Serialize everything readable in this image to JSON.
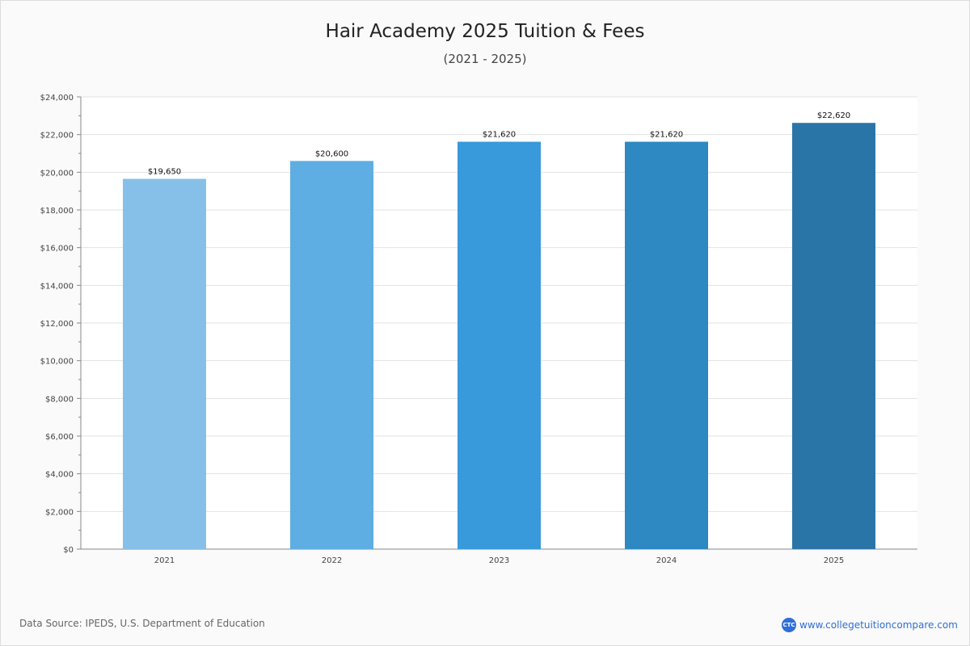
{
  "chart_data": {
    "type": "bar",
    "title": "Hair Academy 2025 Tuition & Fees",
    "subtitle": "(2021 - 2025)",
    "categories": [
      "2021",
      "2022",
      "2023",
      "2024",
      "2025"
    ],
    "values": [
      19650,
      20600,
      21620,
      21620,
      22620
    ],
    "value_labels": [
      "$19,650",
      "$20,600",
      "$21,620",
      "$21,620",
      "$22,620"
    ],
    "colors": [
      "#86c0e8",
      "#5eaee3",
      "#3899db",
      "#2e88c2",
      "#2a75a8"
    ],
    "ylim": [
      0,
      24000
    ],
    "yticks": [
      0,
      2000,
      4000,
      6000,
      8000,
      10000,
      12000,
      14000,
      16000,
      18000,
      20000,
      22000,
      24000
    ],
    "ytick_labels": [
      "$0",
      "$2,000",
      "$4,000",
      "$6,000",
      "$8,000",
      "$10,000",
      "$12,000",
      "$14,000",
      "$16,000",
      "$18,000",
      "$20,000",
      "$22,000",
      "$24,000"
    ],
    "xlabel": "",
    "ylabel": "",
    "grid": true
  },
  "footer": {
    "source": "Data Source: IPEDS, U.S. Department of Education",
    "logo_text": "CTC",
    "site": "www.collegetuitioncompare.com"
  }
}
